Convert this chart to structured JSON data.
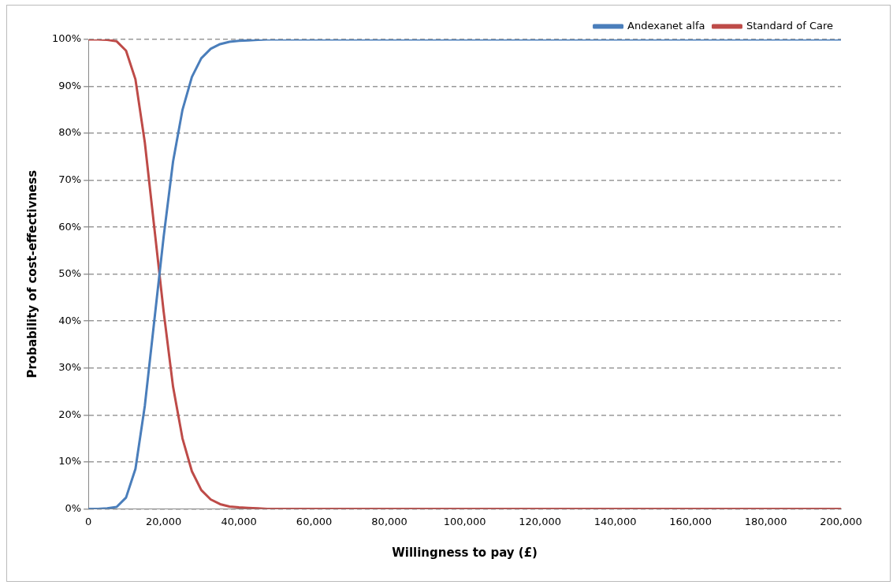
{
  "chart_data": {
    "type": "line",
    "xlabel": "Willingness to pay (£)",
    "ylabel": "Probability of cost-effectivness",
    "x": [
      0,
      2500,
      5000,
      7500,
      10000,
      12500,
      15000,
      17500,
      20000,
      22500,
      25000,
      27500,
      30000,
      32500,
      35000,
      37500,
      40000,
      42500,
      45000,
      47500,
      50000,
      60000,
      80000,
      100000,
      120000,
      140000,
      160000,
      180000,
      200000
    ],
    "series": [
      {
        "name": "Andexanet alfa",
        "color": "#4a7ebb",
        "values": [
          0,
          0,
          0.1,
          0.4,
          2.4,
          8.5,
          22,
          40,
          58,
          74,
          85,
          92,
          96,
          98,
          99,
          99.5,
          99.7,
          99.8,
          99.9,
          100,
          100,
          100,
          100,
          100,
          100,
          100,
          100,
          100,
          100
        ]
      },
      {
        "name": "Standard of Care",
        "color": "#be4b48",
        "values": [
          100,
          100,
          99.9,
          99.6,
          97.6,
          91.5,
          78,
          60,
          42,
          26,
          15,
          8,
          4,
          2,
          1,
          0.5,
          0.3,
          0.2,
          0.1,
          0,
          0,
          0,
          0,
          0,
          0,
          0,
          0,
          0,
          0
        ]
      }
    ],
    "xlim": [
      0,
      200000
    ],
    "xticks": [
      {
        "value": 0,
        "label": "0"
      },
      {
        "value": 20000,
        "label": "20,000"
      },
      {
        "value": 40000,
        "label": "40,000"
      },
      {
        "value": 60000,
        "label": "60,000"
      },
      {
        "value": 80000,
        "label": "80,000"
      },
      {
        "value": 100000,
        "label": "100,000"
      },
      {
        "value": 120000,
        "label": "120,000"
      },
      {
        "value": 140000,
        "label": "140,000"
      },
      {
        "value": 160000,
        "label": "160,000"
      },
      {
        "value": 180000,
        "label": "180,000"
      },
      {
        "value": 200000,
        "label": "200,000"
      }
    ],
    "ylim": [
      0,
      100
    ],
    "yticks": [
      {
        "value": 0,
        "label": "0%"
      },
      {
        "value": 10,
        "label": "10%"
      },
      {
        "value": 20,
        "label": "20%"
      },
      {
        "value": 30,
        "label": "30%"
      },
      {
        "value": 40,
        "label": "40%"
      },
      {
        "value": 50,
        "label": "50%"
      },
      {
        "value": 60,
        "label": "60%"
      },
      {
        "value": 70,
        "label": "70%"
      },
      {
        "value": 80,
        "label": "80%"
      },
      {
        "value": 90,
        "label": "90%"
      },
      {
        "value": 100,
        "label": "100%"
      }
    ],
    "grid": "y",
    "legend": "top right",
    "marker": "none",
    "line_style": "solid"
  }
}
